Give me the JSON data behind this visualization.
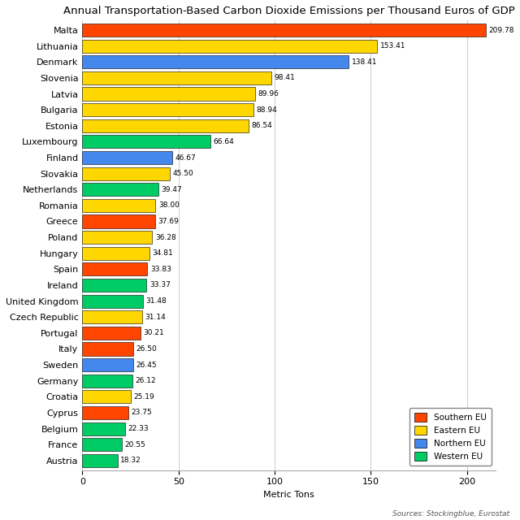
{
  "title": "Annual Transportation-Based Carbon Dioxide Emissions per Thousand Euros of GDP",
  "xlabel": "Metric Tons",
  "source": "Sources: Stockingblue, Eurostat",
  "countries": [
    "Malta",
    "Lithuania",
    "Denmark",
    "Slovenia",
    "Latvia",
    "Bulgaria",
    "Estonia",
    "Luxembourg",
    "Finland",
    "Slovakia",
    "Netherlands",
    "Romania",
    "Greece",
    "Poland",
    "Hungary",
    "Spain",
    "Ireland",
    "United Kingdom",
    "Czech Republic",
    "Portugal",
    "Italy",
    "Sweden",
    "Germany",
    "Croatia",
    "Cyprus",
    "Belgium",
    "France",
    "Austria"
  ],
  "values": [
    209.78,
    153.41,
    138.41,
    98.41,
    89.96,
    88.94,
    86.54,
    66.64,
    46.67,
    45.5,
    39.47,
    38.0,
    37.69,
    36.28,
    34.81,
    33.83,
    33.37,
    31.48,
    31.14,
    30.21,
    26.5,
    26.45,
    26.12,
    25.19,
    23.75,
    22.33,
    20.55,
    18.32
  ],
  "regions": [
    "Southern EU",
    "Eastern EU",
    "Northern EU",
    "Eastern EU",
    "Eastern EU",
    "Eastern EU",
    "Eastern EU",
    "Western EU",
    "Northern EU",
    "Eastern EU",
    "Western EU",
    "Eastern EU",
    "Southern EU",
    "Eastern EU",
    "Eastern EU",
    "Southern EU",
    "Western EU",
    "Western EU",
    "Eastern EU",
    "Southern EU",
    "Southern EU",
    "Northern EU",
    "Western EU",
    "Eastern EU",
    "Southern EU",
    "Western EU",
    "Western EU",
    "Western EU"
  ],
  "region_colors": {
    "Southern EU": "#FF4500",
    "Eastern EU": "#FFD700",
    "Northern EU": "#4488EE",
    "Western EU": "#00CC66"
  },
  "legend_order": [
    "Southern EU",
    "Eastern EU",
    "Northern EU",
    "Western EU"
  ],
  "bar_height": 0.82,
  "xlim": [
    0,
    215
  ],
  "xticks": [
    0,
    50,
    100,
    150,
    200
  ],
  "figsize": [
    6.4,
    6.4
  ],
  "dpi": 100,
  "title_fontsize": 9.5,
  "label_fontsize": 8,
  "tick_fontsize": 8,
  "value_fontsize": 6.5,
  "source_fontsize": 6.5,
  "background_color": "#FFFFFF",
  "grid_color": "#CCCCCC"
}
